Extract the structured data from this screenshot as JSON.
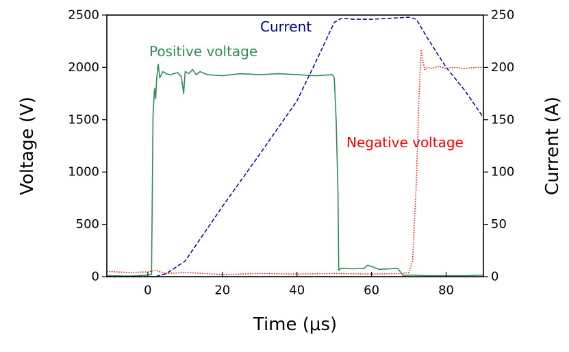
{
  "chart_data": {
    "type": "line",
    "xlabel": "Time (μs)",
    "ylabel": "Voltage (V)",
    "y2label": "Current (A)",
    "xlim": [
      -11,
      90
    ],
    "ylim": [
      0,
      2500
    ],
    "y2lim": [
      0,
      250
    ],
    "xticks": [
      0,
      20,
      40,
      60,
      80
    ],
    "yticks": [
      0,
      500,
      1000,
      1500,
      2000,
      2500
    ],
    "y2ticks": [
      0,
      50,
      100,
      150,
      200,
      250
    ],
    "grid": false,
    "colors": {
      "positive": "#2e8b57",
      "current": "#00008b",
      "negative": "#ff0000"
    },
    "annotations": {
      "positive": "Positive voltage",
      "current": "Current",
      "negative": "Negative voltage"
    },
    "series": [
      {
        "name": "Positive voltage",
        "axis": "left",
        "style": "solid",
        "x": [
          -11,
          -5,
          0,
          1.0,
          1.4,
          1.8,
          2.1,
          2.4,
          2.8,
          3.2,
          4,
          5,
          6,
          8,
          9,
          9.6,
          10,
          11,
          12,
          13,
          14,
          16,
          20,
          25,
          30,
          35,
          40,
          45,
          49.5,
          50.0,
          50.5,
          51.0,
          51.2,
          51.8,
          55,
          58,
          59,
          62,
          65,
          67,
          68.5,
          70,
          75,
          80,
          85,
          90
        ],
        "values": [
          10,
          5,
          15,
          20,
          1550,
          1800,
          1700,
          1910,
          2030,
          1900,
          1960,
          1940,
          1930,
          1950,
          1910,
          1750,
          1960,
          1940,
          1980,
          1930,
          1960,
          1930,
          1920,
          1940,
          1930,
          1940,
          1930,
          1920,
          1930,
          1900,
          1500,
          800,
          60,
          80,
          75,
          80,
          110,
          70,
          75,
          80,
          10,
          15,
          10,
          10,
          10,
          15
        ]
      },
      {
        "name": "Current",
        "axis": "right",
        "style": "dashed",
        "x": [
          -11,
          0,
          2,
          5,
          10,
          20,
          30,
          40,
          45,
          50,
          52,
          55,
          60,
          65,
          70,
          72,
          75,
          80,
          85,
          90
        ],
        "values": [
          0,
          0,
          0,
          3,
          15,
          67,
          117,
          168,
          205,
          243,
          247,
          246,
          246,
          247,
          248,
          246,
          228,
          200,
          178,
          152
        ]
      },
      {
        "name": "Negative voltage",
        "axis": "left",
        "style": "dotted",
        "x": [
          -11,
          -5,
          0,
          2,
          5,
          10,
          20,
          30,
          40,
          50,
          60,
          68,
          70,
          71,
          72,
          72.8,
          73.3,
          73.8,
          74.3,
          75,
          76,
          78,
          80,
          82,
          85,
          88,
          90
        ],
        "values": [
          50,
          40,
          45,
          60,
          30,
          40,
          20,
          30,
          25,
          30,
          25,
          30,
          40,
          150,
          900,
          1800,
          2170,
          2050,
          1980,
          2000,
          1990,
          2010,
          1990,
          2000,
          1990,
          2000,
          2000
        ]
      }
    ]
  }
}
